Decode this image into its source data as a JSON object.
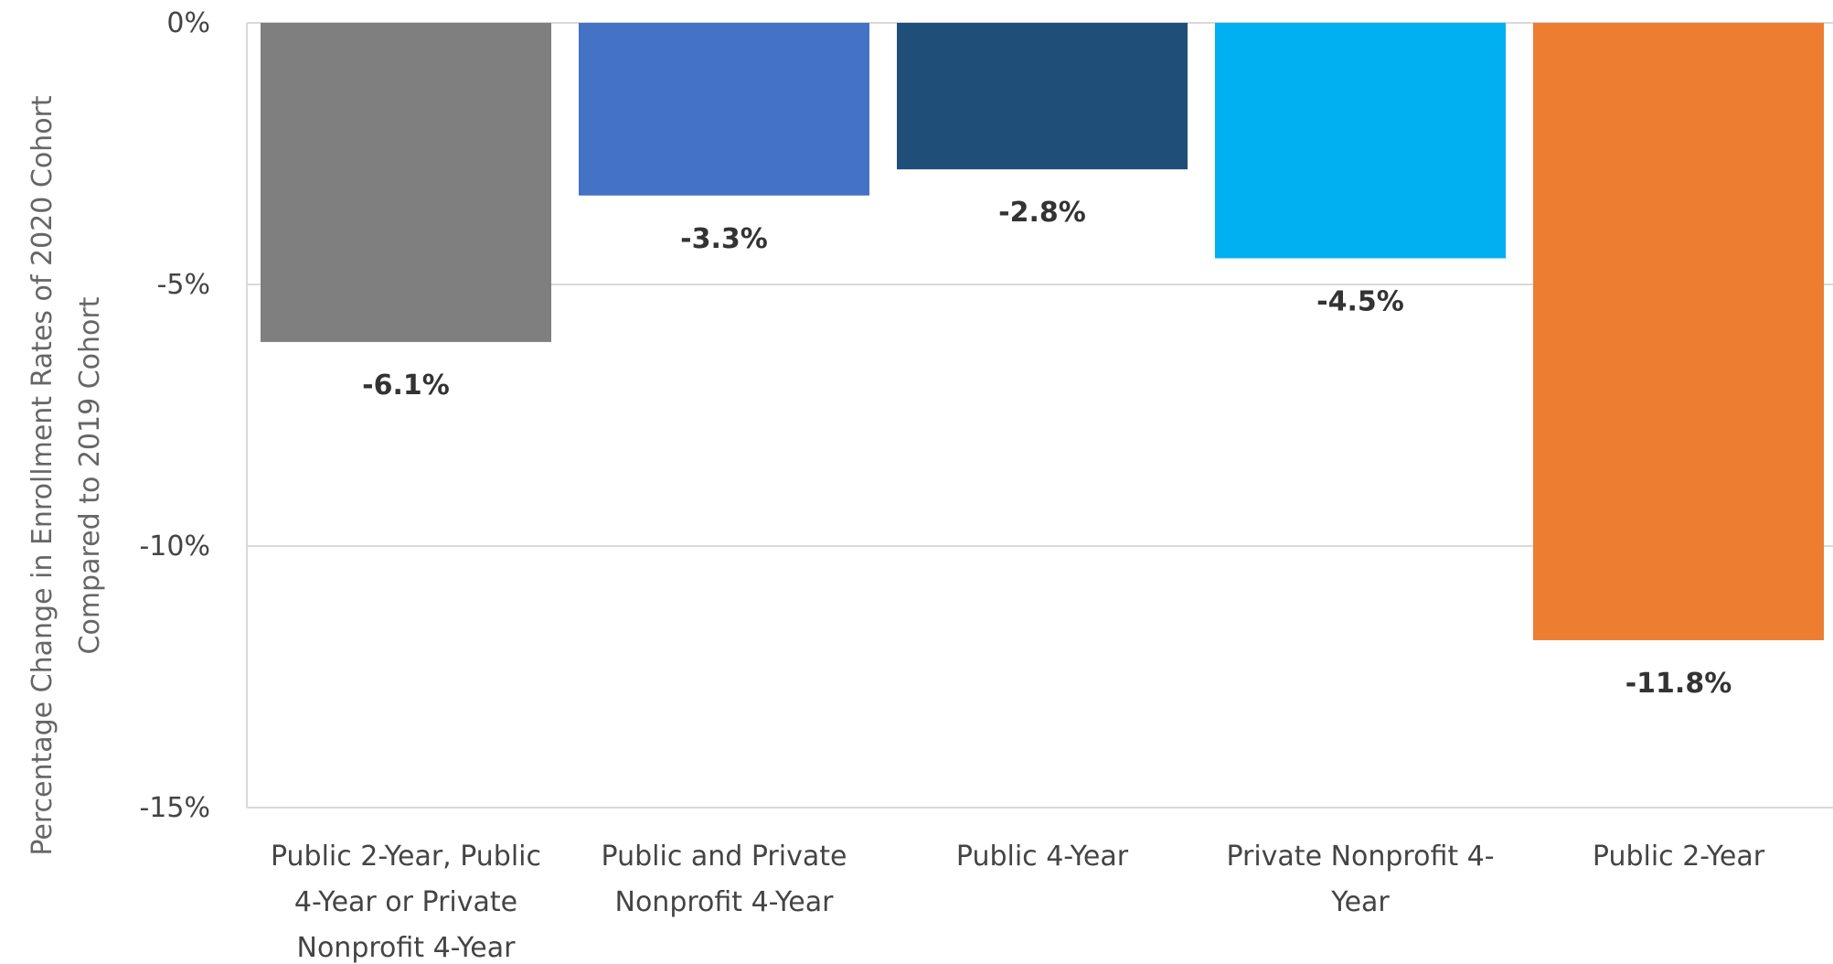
{
  "chart_data": {
    "type": "bar",
    "title": "",
    "xlabel": "",
    "ylabel_lines": [
      "Percentage Change in Enrollment Rates of 2020 Cohort",
      "Compared to 2019 Cohort"
    ],
    "ylim": [
      -15,
      0
    ],
    "yticks": [
      0,
      -5,
      -10,
      -15
    ],
    "ytick_labels": [
      "0%",
      "-5%",
      "-10%",
      "-15%"
    ],
    "grid": true,
    "legend": "none",
    "categories": [
      [
        "Public 2-Year, Public",
        "4-Year or Private",
        "Nonprofit 4-Year"
      ],
      [
        "Public and Private",
        "Nonprofit 4-Year"
      ],
      [
        "Public 4-Year"
      ],
      [
        "Private Nonprofit 4-",
        "Year"
      ],
      [
        "Public 2-Year"
      ]
    ],
    "values": [
      -6.1,
      -3.3,
      -2.8,
      -4.5,
      -11.8
    ],
    "value_labels": [
      "-6.1%",
      "-3.3%",
      "-2.8%",
      "-4.5%",
      "-11.8%"
    ],
    "colors": [
      "#7f7f7f",
      "#4472c4",
      "#1f4e79",
      "#00b0f0",
      "#ed7d31"
    ]
  }
}
